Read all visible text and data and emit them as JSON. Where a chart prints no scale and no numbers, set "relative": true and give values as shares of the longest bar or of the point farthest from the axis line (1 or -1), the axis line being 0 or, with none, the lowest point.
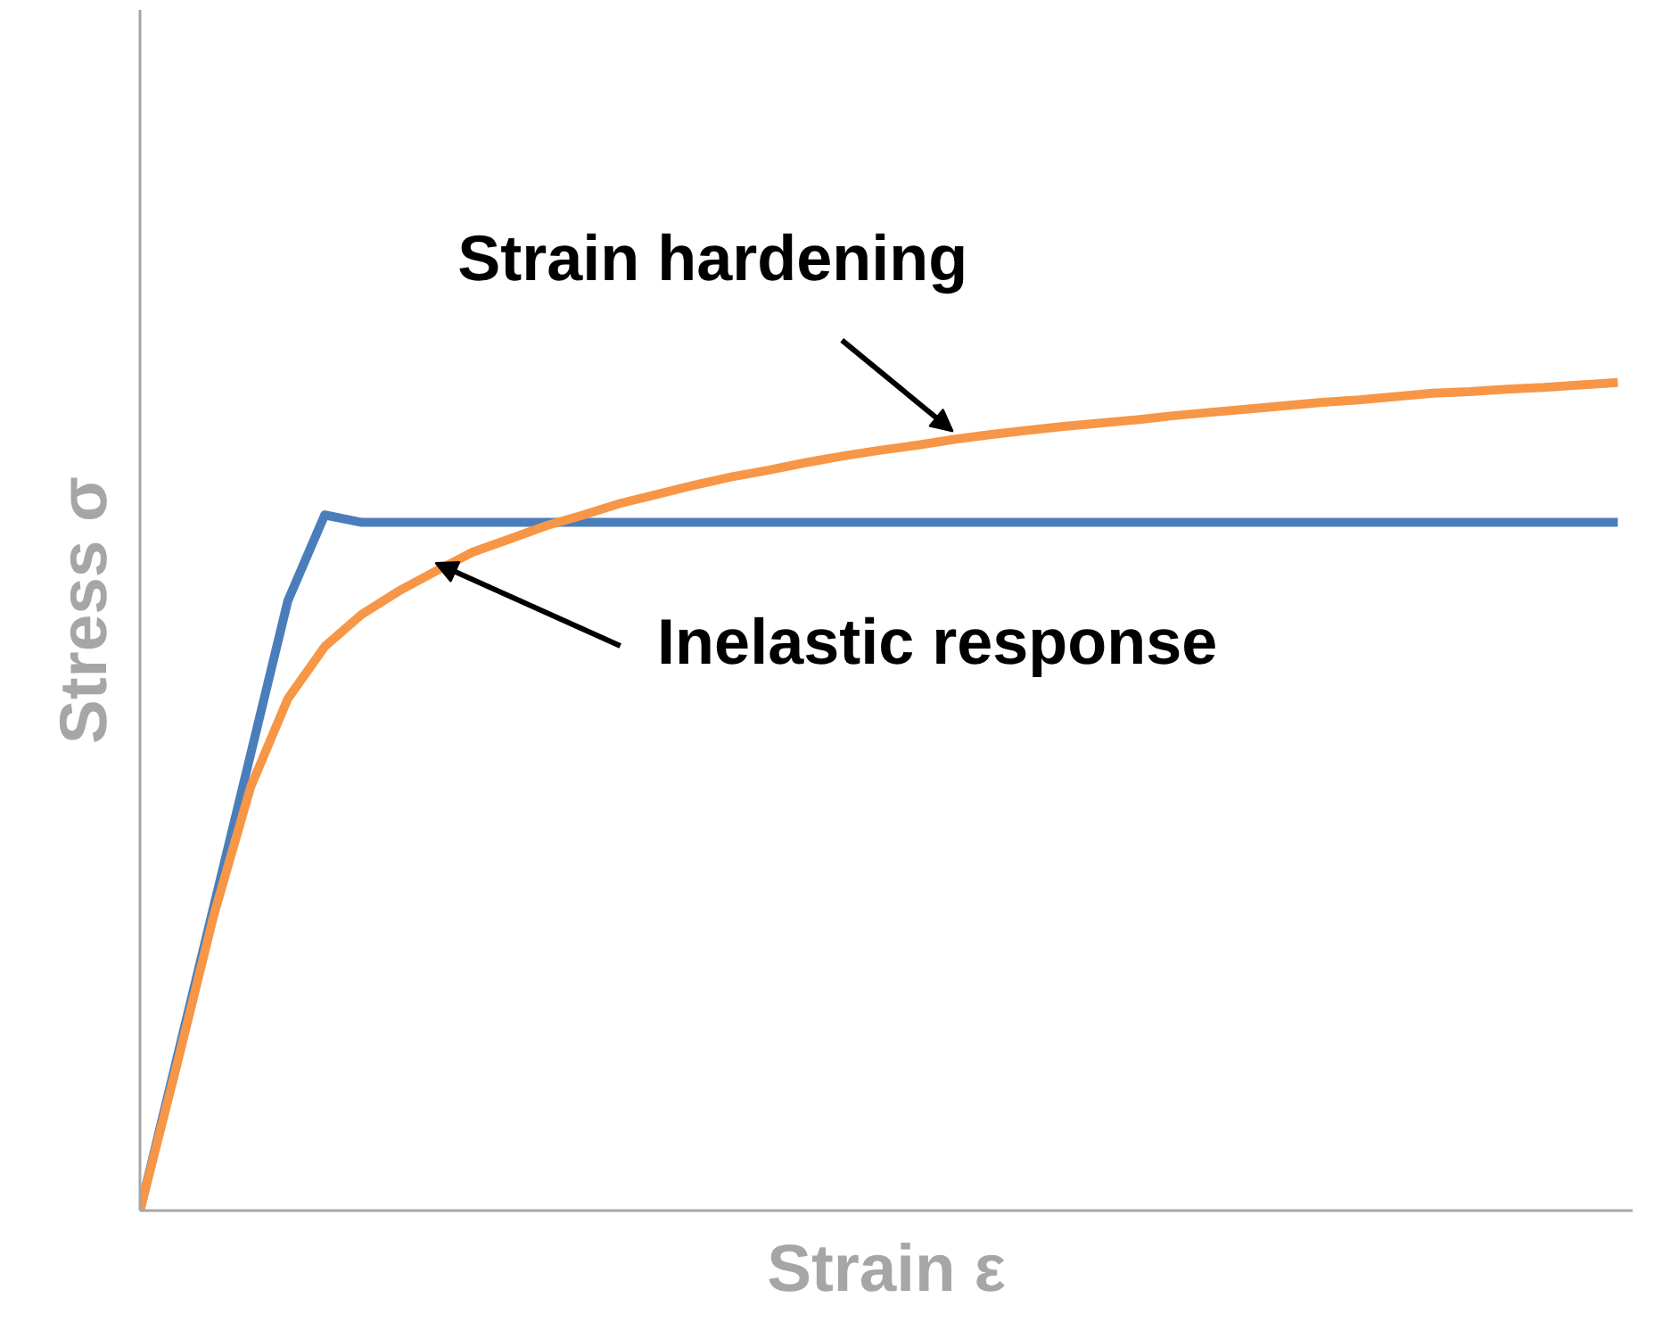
{
  "chart_data": {
    "type": "line",
    "relative": true,
    "xlabel": "Strain ε",
    "ylabel": "Stress σ",
    "grid": false,
    "marker": "none",
    "line_style": "solid",
    "categories": [
      null,
      null,
      null,
      null,
      null,
      null,
      null,
      null,
      null,
      null,
      null,
      null,
      null,
      null,
      null,
      null,
      null,
      null,
      null,
      null,
      null,
      null,
      null,
      null,
      null,
      null,
      null,
      null,
      null,
      null,
      null,
      null,
      null,
      null,
      null,
      null,
      null,
      null,
      null,
      null,
      null
    ],
    "series": [
      {
        "color": "#4a7ebb",
        "values": [
          0,
          0.184,
          0.368,
          0.552,
          0.736,
          0.84,
          0.831,
          0.831,
          0.831,
          0.831,
          0.831,
          0.831,
          0.831,
          0.831,
          0.831,
          0.831,
          0.831,
          0.831,
          0.831,
          0.831,
          0.831,
          0.831,
          0.831,
          0.831,
          0.831,
          0.831,
          0.831,
          0.831,
          0.831,
          0.831,
          0.831,
          0.831,
          0.831,
          0.831,
          0.831,
          0.831,
          0.831,
          0.831,
          0.831,
          0.831,
          0.831
        ]
      },
      {
        "color": "#f79646",
        "values": [
          0,
          0.176,
          0.357,
          0.512,
          0.618,
          0.681,
          0.72,
          0.748,
          0.772,
          0.795,
          0.811,
          0.827,
          0.84,
          0.854,
          0.865,
          0.876,
          0.886,
          0.894,
          0.903,
          0.911,
          0.918,
          0.924,
          0.931,
          0.937,
          0.942,
          0.947,
          0.951,
          0.955,
          0.96,
          0.964,
          0.968,
          0.972,
          0.976,
          0.979,
          0.983,
          0.987,
          0.989,
          0.992,
          0.994,
          0.997,
          1.0
        ]
      }
    ],
    "annotations": [
      "Strain hardening",
      "Inelastic response"
    ]
  }
}
